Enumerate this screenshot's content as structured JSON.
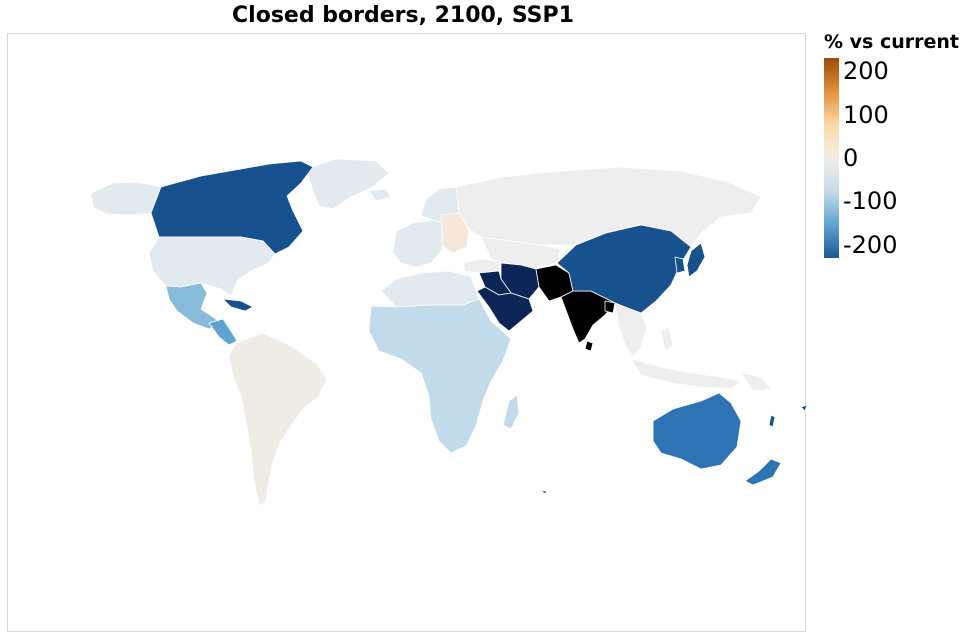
{
  "title": "Closed borders, 2100, SSP1",
  "legend": {
    "title": "% vs current",
    "ticks": [
      {
        "label": "200",
        "value": 200
      },
      {
        "label": "100",
        "value": 100
      },
      {
        "label": "0",
        "value": 0
      },
      {
        "label": "-100",
        "value": -100
      },
      {
        "label": "-200",
        "value": -200
      }
    ],
    "colors": [
      "#9e4a07",
      "#e0913a",
      "#fdd9a8",
      "#f2eee8",
      "#c3dcea",
      "#5ea4ce",
      "#1b5896"
    ]
  },
  "colors": {
    "darkest": "#000000",
    "navy": "#0b2557",
    "dark_blue": "#17528f",
    "mid_blue": "#2e74b4",
    "light_blue": "#86bbd9",
    "pale_blue": "#c2dbea",
    "very_pale_blue": "#e2eaef",
    "neutral": "#eeeeee",
    "warm_neutral": "#efece6",
    "peach": "#f5e8da",
    "border": "#ffffff"
  }
}
